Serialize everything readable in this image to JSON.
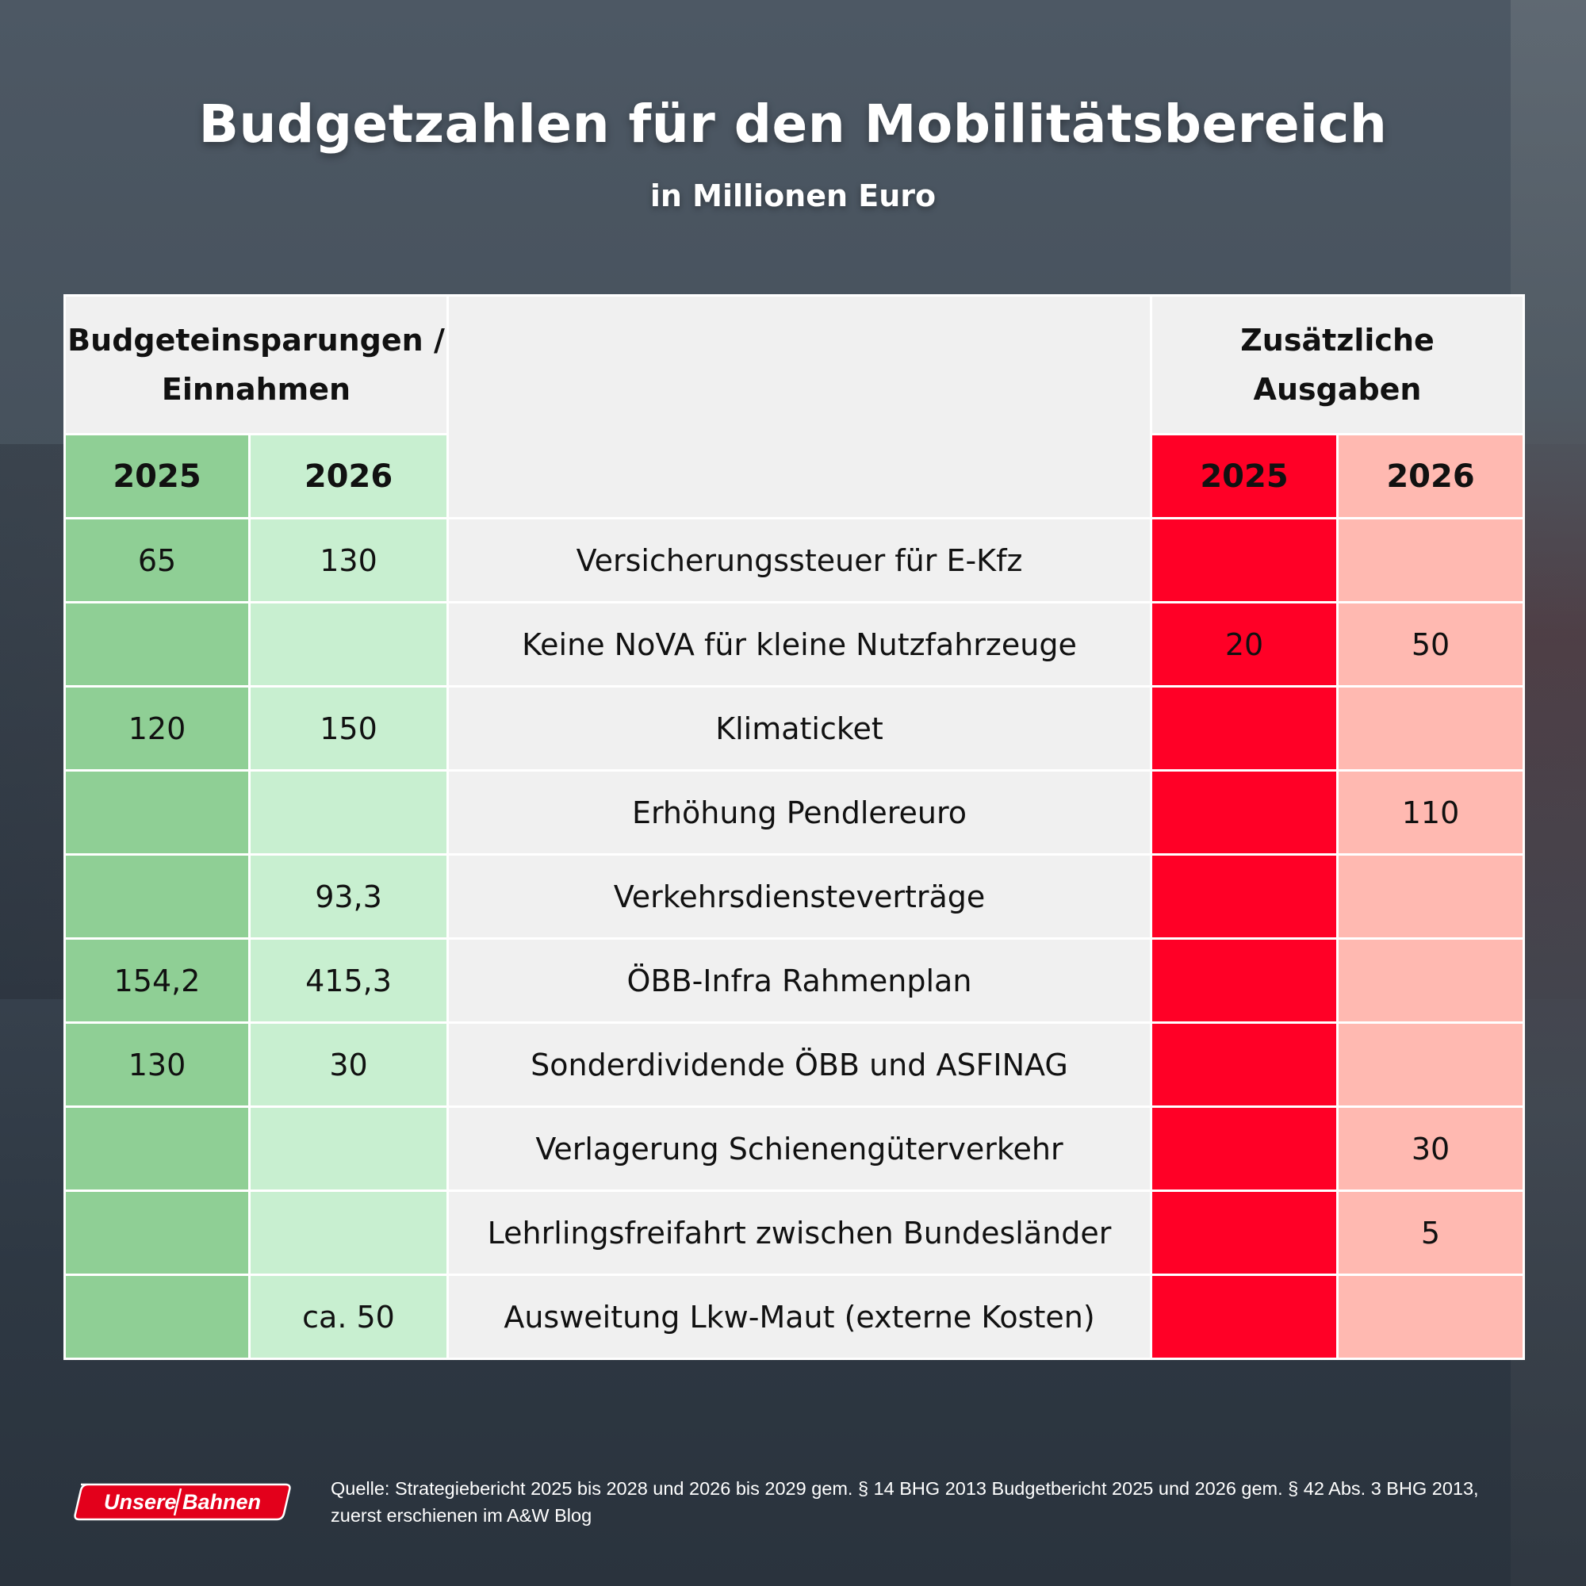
{
  "title": "Budgetzahlen für den Mobilitätsbereich",
  "subtitle": "in Millionen Euro",
  "chart_data": {
    "type": "table",
    "title": "Budgetzahlen für den Mobilitätsbereich",
    "subtitle": "in Millionen Euro",
    "groups": [
      {
        "label": "Budgeteinsparungen / Einnahmen",
        "years": [
          "2025",
          "2026"
        ]
      },
      {
        "label": "Zusätzliche Ausgaben",
        "years": [
          "2025",
          "2026"
        ]
      }
    ],
    "rows": [
      {
        "label": "Versicherungssteuer für E-Kfz",
        "savings_2025": "65",
        "savings_2026": "130",
        "spending_2025": "",
        "spending_2026": ""
      },
      {
        "label": "Keine NoVA für kleine Nutzfahrzeuge",
        "savings_2025": "",
        "savings_2026": "",
        "spending_2025": "20",
        "spending_2026": "50"
      },
      {
        "label": "Klimaticket",
        "savings_2025": "120",
        "savings_2026": "150",
        "spending_2025": "",
        "spending_2026": ""
      },
      {
        "label": "Erhöhung Pendlereuro",
        "savings_2025": "",
        "savings_2026": "",
        "spending_2025": "",
        "spending_2026": "110"
      },
      {
        "label": "Verkehrsdiensteverträge",
        "savings_2025": "",
        "savings_2026": "93,3",
        "spending_2025": "",
        "spending_2026": ""
      },
      {
        "label": "ÖBB-Infra Rahmenplan",
        "savings_2025": "154,2",
        "savings_2026": "415,3",
        "spending_2025": "",
        "spending_2026": ""
      },
      {
        "label": "Sonderdividende ÖBB und ASFINAG",
        "savings_2025": "130",
        "savings_2026": "30",
        "spending_2025": "",
        "spending_2026": ""
      },
      {
        "label": "Verlagerung Schienengüterverkehr",
        "savings_2025": "",
        "savings_2026": "",
        "spending_2025": "",
        "spending_2026": "30"
      },
      {
        "label": "Lehrlingsfreifahrt zwischen Bundesländer",
        "savings_2025": "",
        "savings_2026": "",
        "spending_2025": "",
        "spending_2026": "5"
      },
      {
        "label": "Ausweitung Lkw-Maut (externe Kosten)",
        "savings_2025": "",
        "savings_2026": "ca. 50",
        "spending_2025": "",
        "spending_2026": ""
      }
    ],
    "colors": {
      "savings_2025": "#8fcf95",
      "savings_2026": "#c8efd0",
      "spending_2025": "#ff0026",
      "spending_2026": "#ffb9b1",
      "label_column": "#f0f0f0"
    }
  },
  "logo_text": "Unsere Bahnen",
  "source_line1": "Quelle: Strategiebericht 2025 bis 2028 und 2026 bis 2029 gem. § 14 BHG 2013 Budgetbericht 2025 und 2026 gem. § 42 Abs. 3 BHG 2013,",
  "source_line2": "zuerst erschienen im A&W Blog"
}
